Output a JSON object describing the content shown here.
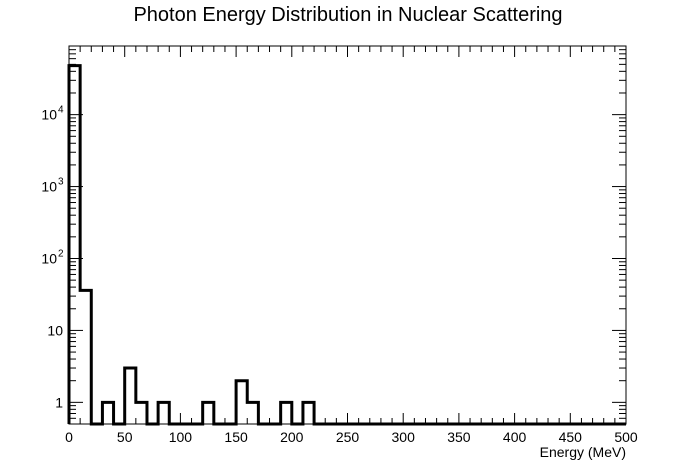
{
  "chart_data": {
    "type": "bar",
    "title": "Photon Energy Distribution in Nuclear Scattering",
    "xlabel": "Energy (MeV)",
    "ylabel": "",
    "xlim": [
      0,
      500
    ],
    "ylim": [
      0.5,
      90000
    ],
    "yscale": "log",
    "grid": false,
    "legend": "none",
    "style": "step histogram",
    "line_color": "#000000",
    "bin_width": 10,
    "x_ticks": [
      "0",
      "50",
      "100",
      "150",
      "200",
      "250",
      "300",
      "350",
      "400",
      "450",
      "500"
    ],
    "y_ticks": [
      {
        "value": 1,
        "base": "1",
        "exp": ""
      },
      {
        "value": 10,
        "base": "10",
        "exp": ""
      },
      {
        "value": 100,
        "base": "10",
        "exp": "2"
      },
      {
        "value": 1000,
        "base": "10",
        "exp": "3"
      },
      {
        "value": 10000,
        "base": "10",
        "exp": "4"
      }
    ],
    "bin_edges": [
      0,
      10,
      20,
      30,
      40,
      50,
      60,
      70,
      80,
      90,
      100,
      110,
      120,
      130,
      140,
      150,
      160,
      170,
      180,
      190,
      200,
      210,
      220,
      230,
      240,
      250,
      260,
      270,
      280,
      290,
      300,
      310,
      320,
      330,
      340,
      350,
      360,
      370,
      380,
      390,
      400,
      410,
      420,
      430,
      440,
      450,
      460,
      470,
      480,
      490,
      500
    ],
    "values": [
      48000,
      36,
      0,
      1,
      0,
      3,
      1,
      0,
      1,
      0,
      0,
      0,
      1,
      0,
      0,
      2,
      1,
      0,
      0,
      1,
      0,
      1,
      0,
      0,
      0,
      0,
      0,
      0,
      0,
      0,
      0,
      0,
      0,
      0,
      0,
      0,
      0,
      0,
      0,
      0,
      0,
      0,
      0,
      0,
      0,
      0,
      0,
      0,
      0,
      0
    ]
  }
}
